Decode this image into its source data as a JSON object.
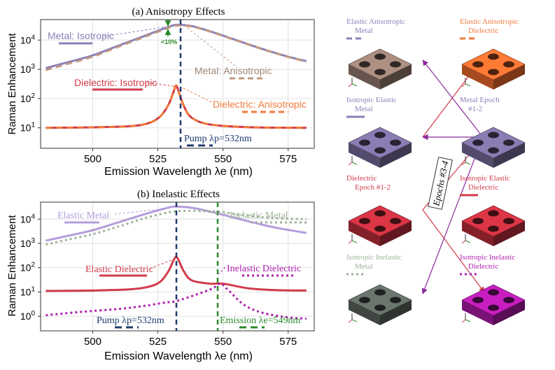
{
  "chart_data": [
    {
      "type": "line",
      "title": "(a) Anisotropy Effects",
      "xlabel": "Emission Wavelength λe (nm)",
      "ylabel": "Raman Enhancement",
      "yscale": "log",
      "xlim": [
        480,
        585
      ],
      "ylim_log10": [
        0.3,
        4.7
      ],
      "xticks": [
        "500",
        "525",
        "550",
        "575"
      ],
      "yticks": [
        "10^1",
        "10^2",
        "10^3",
        "10^4"
      ],
      "series": [
        {
          "name": "Metal: Isotropic",
          "color": "#8b7fb8",
          "style": "solid",
          "x": [
            482,
            490,
            500,
            510,
            520,
            528,
            532,
            538,
            545,
            555,
            565,
            575,
            582
          ],
          "y": [
            1100,
            1700,
            3000,
            6500,
            14000,
            26000,
            33000,
            30000,
            20000,
            10000,
            5000,
            2700,
            1900
          ]
        },
        {
          "name": "Metal: Anisotropic",
          "color": "#c09a80",
          "style": "dashed",
          "x": [
            482,
            490,
            500,
            510,
            520,
            528,
            532,
            538,
            545,
            555,
            565,
            575,
            582
          ],
          "y": [
            950,
            1500,
            2700,
            6000,
            13000,
            24000,
            31000,
            29000,
            19500,
            9800,
            4900,
            2650,
            1850
          ]
        },
        {
          "name": "Dielectric: Isotropic",
          "color": "#d13b4a",
          "style": "solid",
          "x": [
            482,
            500,
            515,
            522,
            526,
            529,
            531,
            532,
            533,
            535,
            538,
            545,
            560,
            582
          ],
          "y": [
            10,
            10.4,
            11.5,
            15,
            25,
            60,
            170,
            280,
            170,
            55,
            22,
            13,
            10.5,
            10
          ]
        },
        {
          "name": "Dielectric: Anisotropic",
          "color": "#f07a3c",
          "style": "dashed",
          "x": [
            482,
            500,
            515,
            522,
            526,
            529,
            531,
            532,
            533,
            535,
            538,
            545,
            560,
            582
          ],
          "y": [
            10,
            10.4,
            11.5,
            15,
            25,
            60,
            170,
            280,
            170,
            55,
            22,
            13,
            10.5,
            10
          ]
        }
      ],
      "annotations": {
        "drop": "<10%",
        "pump": "Pump λp=532nm"
      }
    },
    {
      "type": "line",
      "title": "(b) Inelastic Effects",
      "xlabel": "Emission Wavelength λe (nm)",
      "ylabel": "Raman Enhancement",
      "yscale": "log",
      "xlim": [
        480,
        585
      ],
      "ylim_log10": [
        -0.6,
        4.7
      ],
      "xticks": [
        "500",
        "525",
        "550",
        "575"
      ],
      "yticks": [
        "10^0",
        "10^1",
        "10^2",
        "10^3",
        "10^4"
      ],
      "series": [
        {
          "name": "Elastic Metal",
          "color": "#b39ddb",
          "style": "solid",
          "x": [
            482,
            490,
            500,
            510,
            520,
            528,
            532,
            540,
            550,
            560,
            570,
            582
          ],
          "y": [
            1300,
            2000,
            3500,
            7500,
            16000,
            28000,
            33000,
            27000,
            15000,
            8000,
            4500,
            2700
          ]
        },
        {
          "name": "Inelastic Metal",
          "color": "#9eb39a",
          "style": "dotted",
          "x": [
            482,
            490,
            500,
            510,
            520,
            528,
            532,
            540,
            549,
            555,
            565,
            575,
            582
          ],
          "y": [
            900,
            1400,
            2400,
            5000,
            11000,
            18000,
            21000,
            22000,
            20000,
            16000,
            12000,
            10500,
            10000
          ]
        },
        {
          "name": "Elastic Dielectric",
          "color": "#d13b4a",
          "style": "solid",
          "x": [
            482,
            500,
            515,
            522,
            526,
            529,
            531,
            532,
            533,
            535,
            538,
            545,
            550,
            560,
            570,
            582
          ],
          "y": [
            11,
            11.5,
            13,
            17,
            27,
            70,
            200,
            280,
            200,
            70,
            30,
            22,
            22,
            14,
            12,
            11.5
          ]
        },
        {
          "name": "Inelastic Dielectric",
          "color": "#b020b0",
          "style": "dotted",
          "x": [
            482,
            495,
            510,
            520,
            528,
            532,
            540,
            546,
            549,
            552,
            558,
            565,
            575,
            582
          ],
          "y": [
            1.1,
            1.5,
            2,
            2.7,
            3.7,
            4.2,
            8,
            14,
            22,
            12,
            3,
            1.4,
            0.9,
            0.8
          ]
        }
      ],
      "annotations": {
        "pump": "Pump λp=532nm",
        "emission": "Emission λe=549nm"
      }
    }
  ],
  "panel_a": {
    "labels": {
      "metal_iso": "Metal: Isotropic",
      "metal_aniso": "Metal: Anisotropic",
      "diel_iso": "Dielectric: Isotropic",
      "diel_aniso": "Dielectric: Anisotropic",
      "drop": "<10%",
      "pump": "Pump λp=532nm"
    }
  },
  "panel_b": {
    "labels": {
      "elastic_metal": "Elastic Metal",
      "inelastic_metal": "Inelastic Metal",
      "elastic_diel": "Elastic Dielectric",
      "inelastic_diel": "Inelastic Dielectric",
      "pump": "Pump λp=532nm",
      "emission": "Emission λe=549nm"
    }
  },
  "structures": {
    "epochs_label": "Epochs #3-4",
    "items": [
      {
        "line1": "Elastic Anisotropic",
        "line2": "Metal",
        "color": "#8b7fb8",
        "fill": "#8a7368",
        "style": "dashed"
      },
      {
        "line1": "Elastic Anisotropic",
        "line2": "Dielectric",
        "color": "#f07a3c",
        "fill": "#e0622a",
        "style": "dashed"
      },
      {
        "line1": "Isotropic Elastic",
        "line2": "Metal",
        "color": "#8b7fb8",
        "fill": "#6e6490",
        "style": "solid"
      },
      {
        "line1": "Metal Epoch",
        "line2": "#1-2",
        "color": "#8b7fb8",
        "fill": "#6e6490",
        "style": "none"
      },
      {
        "line1": "Dielectric",
        "line2": "Epoch #1-2",
        "color": "#d13b4a",
        "fill": "#b02a38",
        "style": "none"
      },
      {
        "line1": "Isotropic Elastic",
        "line2": "Dielectric",
        "color": "#d13b4a",
        "fill": "#b02a38",
        "style": "solid"
      },
      {
        "line1": "Isotropic Inelastic",
        "line2": "Metal",
        "color": "#9eb39a",
        "fill": "#555e58",
        "style": "dotted"
      },
      {
        "line1": "Isotropic Inelastic",
        "line2": "Dielectric",
        "color": "#b020b0",
        "fill": "#a0189a",
        "style": "dotted"
      }
    ]
  }
}
